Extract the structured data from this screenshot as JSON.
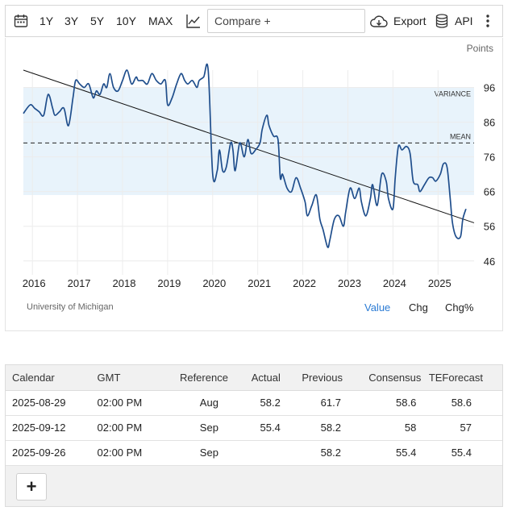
{
  "toolbar": {
    "ranges": [
      "1Y",
      "3Y",
      "5Y",
      "10Y",
      "MAX"
    ],
    "compare_label": "Compare +",
    "export_label": "Export",
    "api_label": "API"
  },
  "chart": {
    "units_label": "Points",
    "source": "University of Michigan",
    "view_tabs": [
      "Value",
      "Chg",
      "Chg%"
    ],
    "active_tab": "Value",
    "colors": {
      "line": "#1f4e8c",
      "band": "#e8f3fb",
      "trend": "#111111",
      "active_tab": "#2a7bd4"
    }
  },
  "chart_data": {
    "type": "line",
    "title": "",
    "xlabel": "",
    "ylabel": "Points",
    "ylim": [
      42,
      101
    ],
    "xlim": [
      2015.8,
      2025.8
    ],
    "x_ticks": [
      "2016",
      "2017",
      "2018",
      "2019",
      "2020",
      "2021",
      "2022",
      "2023",
      "2024",
      "2025"
    ],
    "y_ticks": [
      46,
      56,
      66,
      76,
      86,
      96
    ],
    "mean": {
      "label": "MEAN",
      "value": 80
    },
    "variance_band": {
      "label": "VARIANCE",
      "low": 65,
      "high": 96
    },
    "trend_line": {
      "x": [
        2015.8,
        2025.8
      ],
      "y": [
        101,
        57
      ]
    },
    "series": [
      {
        "x": [
          2015.8,
          2015.95,
          2016.05,
          2016.15,
          2016.25,
          2016.35,
          2016.45,
          2016.5,
          2016.6,
          2016.7,
          2016.8,
          2016.9,
          2016.96,
          2017.05,
          2017.15,
          2017.25,
          2017.35,
          2017.42,
          2017.5,
          2017.58,
          2017.65,
          2017.72,
          2017.8,
          2017.9,
          2018.0,
          2018.1,
          2018.2,
          2018.3,
          2018.35,
          2018.45,
          2018.55,
          2018.65,
          2018.75,
          2018.85,
          2018.95,
          2019.0,
          2019.1,
          2019.2,
          2019.3,
          2019.38,
          2019.45,
          2019.55,
          2019.65,
          2019.7,
          2019.8,
          2019.9,
          2020.0,
          2020.1,
          2020.15,
          2020.22,
          2020.3,
          2020.4,
          2020.45,
          2020.5,
          2020.6,
          2020.7,
          2020.78,
          2020.85,
          2020.95,
          2021.05,
          2021.1,
          2021.2,
          2021.25,
          2021.35,
          2021.45,
          2021.5,
          2021.55,
          2021.65,
          2021.75,
          2021.85,
          2021.95,
          2022.05,
          2022.1,
          2022.2,
          2022.3,
          2022.38,
          2022.45,
          2022.55,
          2022.6,
          2022.7,
          2022.8,
          2022.9,
          2022.95,
          2023.05,
          2023.15,
          2023.25,
          2023.3,
          2023.4,
          2023.5,
          2023.55,
          2023.65,
          2023.75,
          2023.85,
          2023.9,
          2024.0,
          2024.05,
          2024.12,
          2024.2,
          2024.3,
          2024.38,
          2024.45,
          2024.55,
          2024.6,
          2024.7,
          2024.8,
          2024.88,
          2024.95,
          2025.05,
          2025.12,
          2025.2,
          2025.27,
          2025.32,
          2025.4,
          2025.5,
          2025.55,
          2025.62
        ],
        "y": [
          88.5,
          91,
          90,
          89,
          88,
          94,
          90,
          88,
          89,
          90,
          85,
          93,
          98,
          97,
          96,
          97,
          93,
          95,
          94,
          97,
          96,
          100,
          96,
          95,
          98,
          101,
          97,
          99,
          98,
          98,
          97,
          100,
          98,
          97,
          98,
          91,
          93,
          97,
          100,
          98,
          97,
          98,
          96,
          98,
          99,
          101,
          71,
          72,
          78,
          72,
          73,
          80,
          78,
          72,
          80,
          76,
          81,
          77,
          78,
          80,
          84,
          88,
          85,
          82,
          81,
          70,
          71,
          67,
          66,
          70,
          67,
          63,
          59,
          62,
          65,
          58,
          55,
          50,
          52,
          58,
          59,
          56,
          60,
          67,
          64,
          67,
          63,
          59,
          64,
          68,
          62,
          71,
          69,
          64,
          61,
          70,
          79,
          78,
          79,
          77,
          69,
          68,
          66,
          68,
          70,
          70,
          69,
          71,
          74,
          73,
          64,
          57,
          53,
          53,
          58,
          61
        ]
      }
    ]
  },
  "calendar": {
    "headers": [
      "Calendar",
      "GMT",
      "Reference",
      "Actual",
      "Previous",
      "Consensus",
      "TEForecast"
    ],
    "rows": [
      [
        "2025-08-29",
        "02:00 PM",
        "Aug",
        "58.2",
        "61.7",
        "58.6",
        "58.6"
      ],
      [
        "2025-09-12",
        "02:00 PM",
        "Sep",
        "55.4",
        "58.2",
        "58",
        "57"
      ],
      [
        "2025-09-26",
        "02:00 PM",
        "Sep",
        "",
        "58.2",
        "55.4",
        "55.4"
      ]
    ],
    "add_label": "+"
  }
}
